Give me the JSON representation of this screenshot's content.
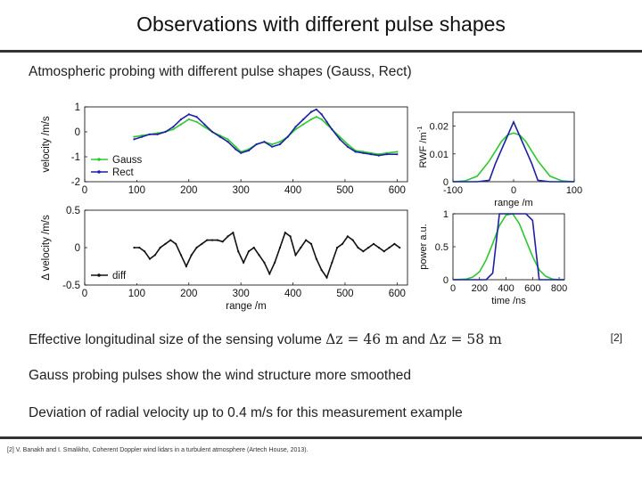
{
  "slide": {
    "title": "Observations with different pulse shapes",
    "heading": "Atmospheric probing with different pulse shapes (Gauss, Rect)",
    "bullet1_pre": "Effective longitudinal size of the sensing volume ",
    "bullet1_eq1": "Δz = 46 m",
    "bullet1_mid": " and ",
    "bullet1_eq2": "Δz = 58 m",
    "bullet2": "Gauss probing pulses show the wind structure more smoothed",
    "bullet3": "Deviation of radial velocity up to 0.4 m/s for this measurement example",
    "ref_tag": "[2]",
    "footnote": "[2] V. Banakh and I. Smalikho, Coherent Doppler wind lidars in a turbulent atmosphere (Artech House, 2013)."
  },
  "colors": {
    "gauss": "#2ec82e",
    "rect": "#1f1fa8",
    "diff": "#111111",
    "axis": "#000000"
  },
  "chart_data": [
    {
      "id": "velocity",
      "type": "line",
      "ylabel": "velocity /m/s",
      "xlim": [
        0,
        620
      ],
      "ylim": [
        -2,
        1
      ],
      "xticks": [
        0,
        100,
        200,
        300,
        400,
        500,
        600
      ],
      "yticks": [
        1,
        0,
        -1,
        -2
      ],
      "legend": "bottom-left",
      "x": [
        95,
        110,
        125,
        140,
        155,
        170,
        185,
        200,
        215,
        230,
        245,
        260,
        275,
        290,
        300,
        315,
        330,
        345,
        360,
        375,
        390,
        405,
        420,
        435,
        445,
        455,
        465,
        475,
        490,
        505,
        520,
        535,
        550,
        565,
        580,
        600
      ],
      "series": [
        {
          "name": "Gauss",
          "color": "#2ec82e",
          "marker": "dot",
          "values": [
            -0.2,
            -0.15,
            -0.1,
            -0.05,
            0.0,
            0.1,
            0.3,
            0.5,
            0.4,
            0.2,
            0.0,
            -0.15,
            -0.3,
            -0.6,
            -0.8,
            -0.7,
            -0.5,
            -0.4,
            -0.5,
            -0.4,
            -0.2,
            0.1,
            0.3,
            0.5,
            0.6,
            0.5,
            0.3,
            0.1,
            -0.2,
            -0.5,
            -0.75,
            -0.8,
            -0.85,
            -0.9,
            -0.85,
            -0.8
          ]
        },
        {
          "name": "Rect",
          "color": "#1f1fa8",
          "marker": "dot",
          "values": [
            -0.3,
            -0.2,
            -0.1,
            -0.1,
            0.0,
            0.2,
            0.5,
            0.7,
            0.6,
            0.3,
            0.0,
            -0.2,
            -0.4,
            -0.7,
            -0.85,
            -0.75,
            -0.5,
            -0.4,
            -0.6,
            -0.5,
            -0.2,
            0.2,
            0.5,
            0.8,
            0.9,
            0.7,
            0.4,
            0.1,
            -0.3,
            -0.6,
            -0.8,
            -0.85,
            -0.9,
            -0.95,
            -0.9,
            -0.9
          ]
        }
      ]
    },
    {
      "id": "diff",
      "type": "line",
      "ylabel": "Δ velocity /m/s",
      "xlabel": "range /m",
      "xlim": [
        0,
        620
      ],
      "ylim": [
        -0.5,
        0.5
      ],
      "xticks": [
        0,
        100,
        200,
        300,
        400,
        500,
        600
      ],
      "yticks": [
        0.5,
        0,
        -0.5
      ],
      "legend": "bottom-left",
      "x": [
        95,
        105,
        115,
        125,
        135,
        145,
        155,
        165,
        175,
        185,
        195,
        205,
        215,
        225,
        235,
        245,
        255,
        265,
        275,
        285,
        295,
        305,
        315,
        325,
        335,
        345,
        355,
        365,
        375,
        385,
        395,
        405,
        415,
        425,
        435,
        445,
        455,
        465,
        475,
        485,
        495,
        505,
        515,
        525,
        535,
        545,
        555,
        565,
        575,
        585,
        595,
        605
      ],
      "series": [
        {
          "name": "diff",
          "color": "#111111",
          "marker": "dot",
          "values": [
            0.0,
            0.0,
            -0.05,
            -0.15,
            -0.1,
            0.0,
            0.05,
            0.1,
            0.05,
            -0.1,
            -0.25,
            -0.1,
            0.0,
            0.05,
            0.1,
            0.1,
            0.1,
            0.08,
            0.15,
            0.2,
            -0.05,
            -0.2,
            -0.05,
            0.0,
            -0.1,
            -0.2,
            -0.35,
            -0.2,
            0.0,
            0.2,
            0.15,
            -0.1,
            0.0,
            0.1,
            0.05,
            -0.15,
            -0.3,
            -0.4,
            -0.2,
            0.0,
            0.05,
            0.15,
            0.1,
            0.0,
            -0.05,
            0.0,
            0.05,
            0.0,
            -0.05,
            0.0,
            0.05,
            0.0
          ]
        }
      ]
    },
    {
      "id": "rwf",
      "type": "line",
      "ylabel": "RWF /m",
      "ylabel_sup": "-1",
      "xlabel": "range /m",
      "xlim": [
        -100,
        100
      ],
      "ylim": [
        0,
        0.025
      ],
      "xticks": [
        -100,
        0,
        100
      ],
      "yticks": [
        0.02,
        0.01,
        0
      ],
      "x": [
        -100,
        -80,
        -60,
        -40,
        -30,
        -20,
        -10,
        0,
        10,
        20,
        30,
        40,
        60,
        80,
        100
      ],
      "series": [
        {
          "name": "Gauss",
          "color": "#2ec82e",
          "values": [
            0,
            0.0003,
            0.002,
            0.0075,
            0.011,
            0.0145,
            0.0168,
            0.0175,
            0.0168,
            0.0145,
            0.011,
            0.0075,
            0.002,
            0.0003,
            0
          ]
        },
        {
          "name": "Rect",
          "color": "#1f1fa8",
          "values": [
            0,
            0,
            0,
            0.0005,
            0.0065,
            0.0115,
            0.0165,
            0.0215,
            0.0165,
            0.0115,
            0.0065,
            0.0005,
            0,
            0,
            0
          ]
        }
      ]
    },
    {
      "id": "pulse",
      "type": "line",
      "ylabel": "power a.u.",
      "xlabel": "time /ns",
      "xlim": [
        0,
        840
      ],
      "ylim": [
        0,
        1
      ],
      "xticks": [
        0,
        200,
        400,
        600,
        800
      ],
      "yticks": [
        1,
        0.5,
        0
      ],
      "x": [
        0,
        100,
        150,
        200,
        250,
        300,
        350,
        400,
        450,
        500,
        550,
        600,
        650,
        700,
        750,
        800,
        840
      ],
      "series": [
        {
          "name": "Gauss",
          "color": "#2ec82e",
          "values": [
            0,
            0.01,
            0.04,
            0.12,
            0.3,
            0.55,
            0.82,
            0.98,
            1.0,
            0.85,
            0.6,
            0.35,
            0.15,
            0.05,
            0.01,
            0,
            0
          ]
        },
        {
          "name": "Rect",
          "color": "#1f1fa8",
          "values": [
            0,
            0,
            0,
            0,
            0.0,
            0.1,
            1.0,
            1.0,
            1.0,
            1.0,
            1.0,
            0.9,
            0.0,
            0,
            0,
            0,
            0
          ]
        }
      ]
    }
  ]
}
